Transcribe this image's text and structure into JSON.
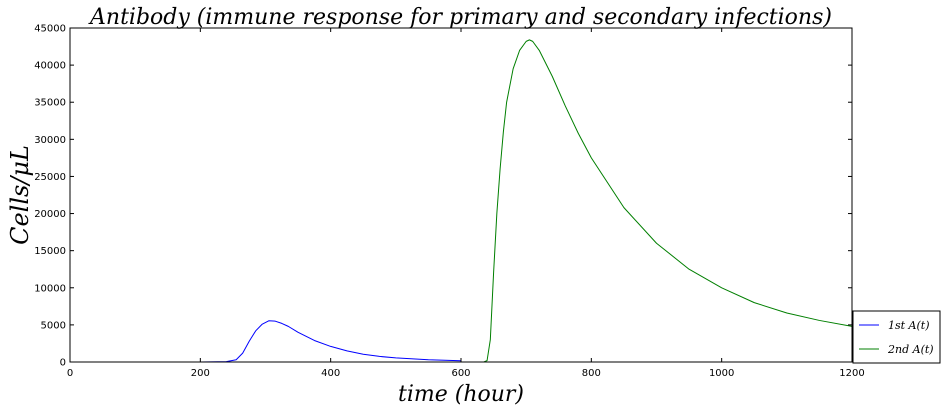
{
  "chart_data": {
    "type": "line",
    "title": "Antibody (immune response for primary and secondary infections)",
    "xlabel": "time (hour)",
    "ylabel": "Cells/μL",
    "xlim": [
      0,
      1200
    ],
    "ylim": [
      0,
      45000
    ],
    "xticks": [
      0,
      200,
      400,
      600,
      800,
      1000,
      1200
    ],
    "xtick_labels": [
      "0",
      "200",
      "400",
      "600",
      "800",
      "1000",
      "1200"
    ],
    "yticks": [
      0,
      5000,
      10000,
      15000,
      20000,
      25000,
      30000,
      35000,
      40000,
      45000
    ],
    "ytick_labels": [
      "0",
      "5000",
      "10000",
      "15000",
      "20000",
      "25000",
      "30000",
      "35000",
      "40000",
      "45000"
    ],
    "grid": false,
    "legend_position": "lower-right-outside",
    "series": [
      {
        "name": "1st A(t)",
        "color": "#0000ff",
        "x": [
          0,
          100,
          200,
          240,
          255,
          265,
          275,
          285,
          295,
          305,
          315,
          325,
          335,
          350,
          375,
          400,
          425,
          450,
          475,
          500,
          550,
          600
        ],
        "y": [
          0,
          0,
          0,
          50,
          300,
          1200,
          2800,
          4200,
          5100,
          5550,
          5500,
          5200,
          4800,
          4000,
          2900,
          2100,
          1500,
          1050,
          750,
          550,
          300,
          160
        ]
      },
      {
        "name": "2nd A(t)",
        "color": "#007f00",
        "x": [
          600,
          620,
          635,
          640,
          645,
          650,
          655,
          660,
          665,
          670,
          680,
          690,
          700,
          705,
          710,
          720,
          740,
          760,
          780,
          800,
          850,
          900,
          950,
          1000,
          1050,
          1100,
          1150,
          1200
        ],
        "y": [
          0,
          0,
          0,
          200,
          3000,
          12000,
          20000,
          26000,
          31000,
          35000,
          39500,
          42000,
          43200,
          43400,
          43200,
          42000,
          38500,
          34500,
          30800,
          27500,
          20800,
          16000,
          12500,
          10000,
          8000,
          6600,
          5600,
          4800
        ]
      }
    ]
  }
}
